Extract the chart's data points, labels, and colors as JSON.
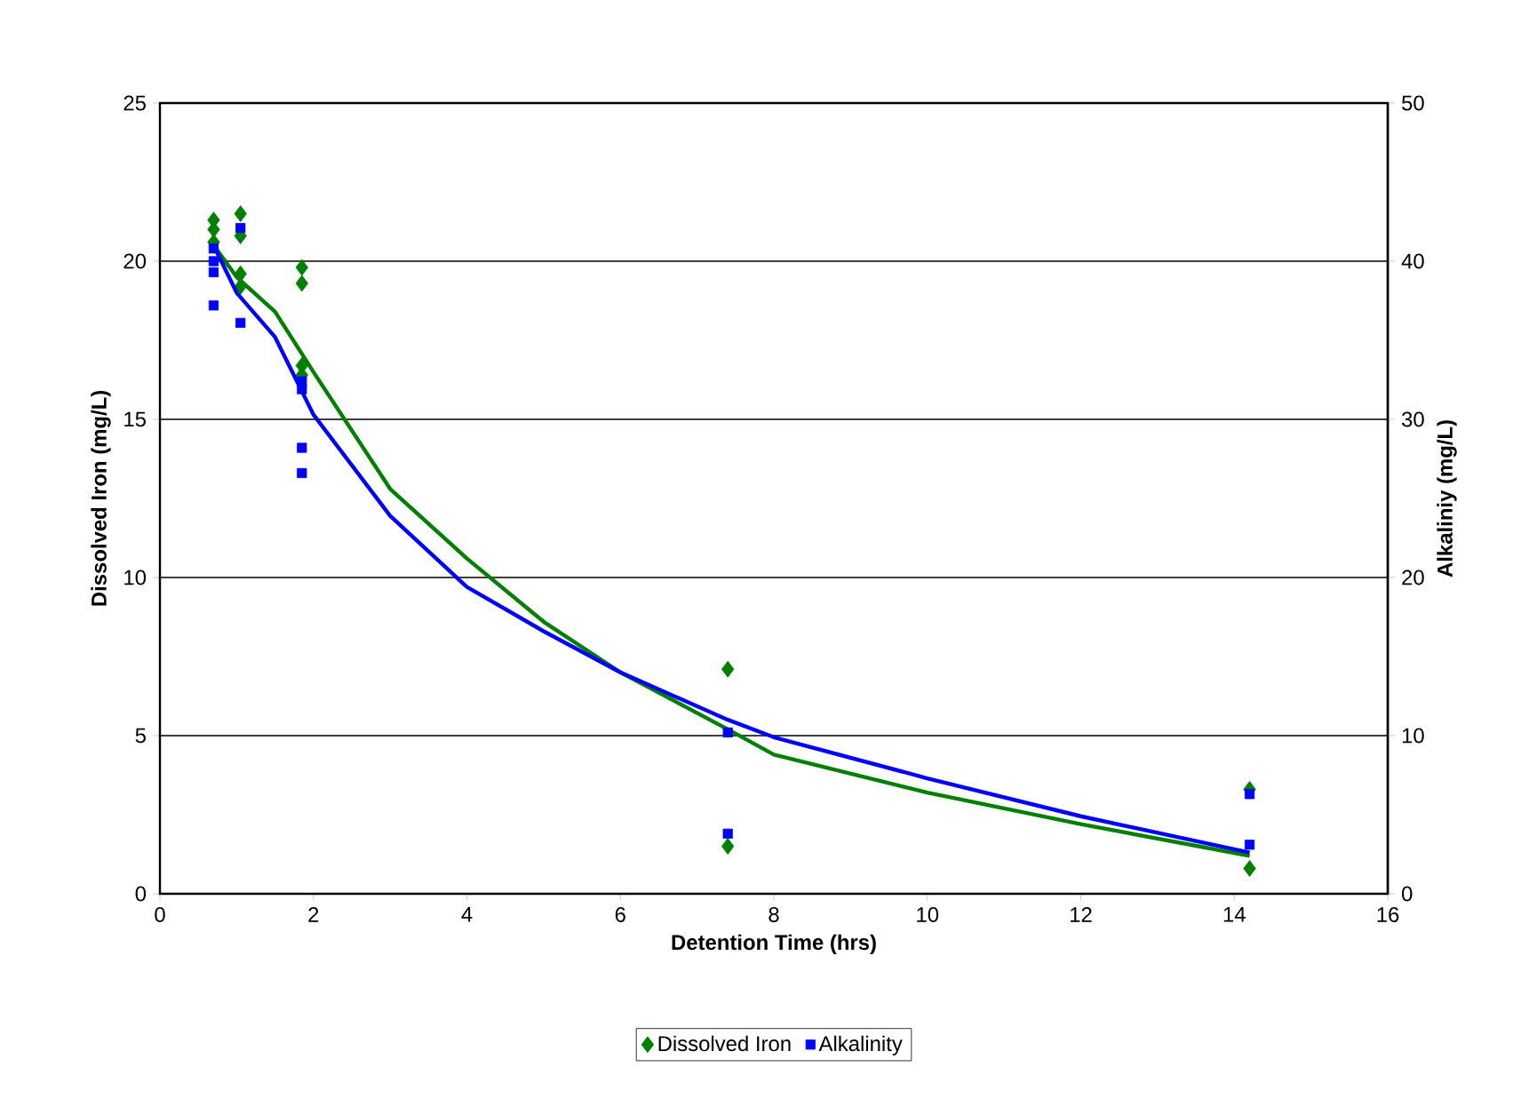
{
  "chart_data": {
    "type": "scatter",
    "xlabel": "Detention Time (hrs)",
    "ylabel": "Dissolved Iron (mg/L)",
    "y2label": "Alkaliniy (mg/L)",
    "xlim": [
      0,
      16
    ],
    "xticks": [
      0,
      2,
      4,
      6,
      8,
      10,
      12,
      14,
      16
    ],
    "ylim": [
      0,
      25
    ],
    "yticks": [
      0,
      5,
      10,
      15,
      20,
      25
    ],
    "y2lim": [
      0,
      50
    ],
    "y2ticks": [
      0,
      10,
      20,
      30,
      40,
      50
    ],
    "grid": "y",
    "legend": "bottom",
    "series": [
      {
        "name": "Dissolved Iron",
        "color": "#008000",
        "marker": "diamond",
        "x": [
          0.7,
          0.7,
          0.7,
          1.05,
          1.05,
          1.05,
          1.05,
          1.85,
          1.85,
          1.85,
          1.85,
          7.4,
          7.4,
          14.2,
          14.2
        ],
        "values": [
          21.3,
          21.0,
          20.6,
          21.5,
          20.8,
          19.6,
          19.2,
          19.8,
          19.3,
          16.7,
          16.4,
          7.1,
          1.5,
          3.3,
          0.8
        ]
      },
      {
        "name": "Alkalinity",
        "color": "#0000ff",
        "marker": "square",
        "axis": "y2",
        "x": [
          0.7,
          0.7,
          0.7,
          0.7,
          1.05,
          1.05,
          1.85,
          1.85,
          1.85,
          1.85,
          7.4,
          7.4,
          14.2,
          14.2
        ],
        "values": [
          40.8,
          40.0,
          39.3,
          37.2,
          42.1,
          36.1,
          32.4,
          31.9,
          28.2,
          26.6,
          10.2,
          3.8,
          6.3,
          3.1
        ]
      },
      {
        "type": "line",
        "color": "#008000",
        "marker": "none",
        "x": [
          0.7,
          1.0,
          1.5,
          2,
          3,
          4,
          5,
          6,
          7.4,
          8,
          10,
          12,
          14.2
        ],
        "values": [
          20.5,
          19.5,
          18.4,
          16.5,
          12.8,
          10.6,
          8.6,
          7.0,
          5.2,
          4.4,
          3.2,
          2.2,
          1.2
        ]
      },
      {
        "type": "line",
        "color": "#0000ff",
        "marker": "none",
        "axis": "y2",
        "x": [
          0.7,
          1.0,
          1.5,
          2,
          3,
          4,
          5,
          6,
          7.4,
          8,
          10,
          12,
          14.2
        ],
        "values": [
          41,
          38,
          35.2,
          30.3,
          23.9,
          19.4,
          16.6,
          14.0,
          11,
          9.9,
          7.3,
          4.9,
          2.6
        ]
      }
    ]
  }
}
